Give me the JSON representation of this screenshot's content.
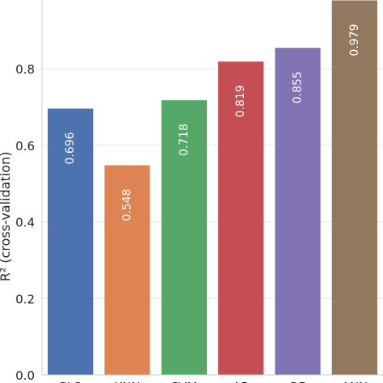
{
  "chart_data": {
    "type": "bar",
    "categories": [
      "PLS",
      "KNN",
      "SVM",
      "AB",
      "RF",
      "ANN"
    ],
    "values": [
      0.696,
      0.548,
      0.718,
      0.819,
      0.855,
      0.979
    ],
    "labels": [
      "0.696",
      "0.548",
      "0.718",
      "0.819",
      "0.855",
      "0.979"
    ],
    "colors": [
      "#4c72b0",
      "#dd8452",
      "#55a868",
      "#c44e52",
      "#8172b3",
      "#937860"
    ],
    "ylabel": "R² (cross-validation)",
    "xlabel": "",
    "title": "",
    "ylim": [
      0,
      0.98
    ],
    "yticks": [
      0.0,
      0.2,
      0.4,
      0.6,
      0.8
    ],
    "ytick_labels": [
      "0.0",
      "0.2",
      "0.4",
      "0.6",
      "0.8"
    ],
    "grid": "horizontal",
    "legend": "none",
    "grid_color": "#e5e5e5",
    "spine_color": "#cccccc"
  }
}
